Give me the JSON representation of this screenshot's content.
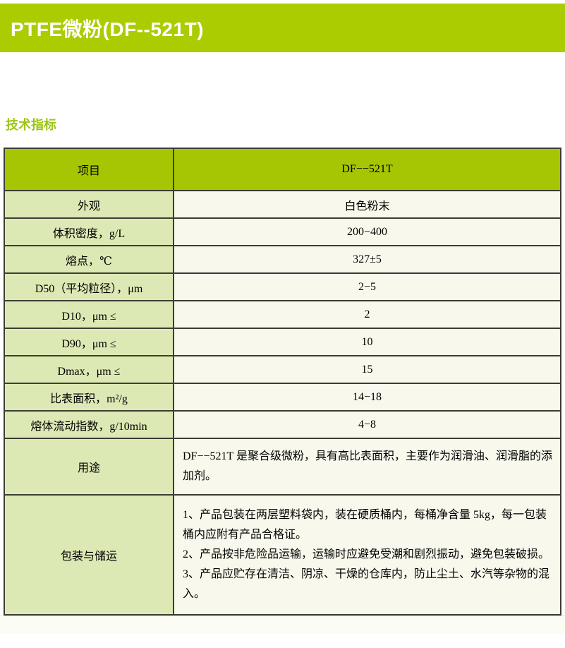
{
  "banner": {
    "title": "PTFE微粉(DF--521T)"
  },
  "section": {
    "heading": "技术指标"
  },
  "colors": {
    "banner_green": "#accc02",
    "header_green": "#a6c503",
    "label_green": "#dde9b4",
    "value_cream": "#f8f9ec",
    "heading_green": "#9cc515",
    "border_dark": "#3c3c33"
  },
  "table": {
    "header": {
      "col1": "项目",
      "col2": "DF−−521T"
    },
    "rows": [
      {
        "label": "外观",
        "value": "白色粉末"
      },
      {
        "label": "体积密度，g/L",
        "value": "200−400"
      },
      {
        "label": "熔点，℃",
        "value": "327±5"
      },
      {
        "label": "D50（平均粒径），μm",
        "value": "2−5"
      },
      {
        "label": "D10，μm ≤",
        "value": "2"
      },
      {
        "label": "D90，μm ≤",
        "value": "10"
      },
      {
        "label": "Dmax，μm ≤",
        "value": "15"
      },
      {
        "label": "比表面积，m²/g",
        "value": "14−18"
      },
      {
        "label": "熔体流动指数，g/10min",
        "value": "4−8"
      },
      {
        "label": "用途",
        "value": "DF−−521T 是聚合级微粉，具有高比表面积，主要作为润滑油、润滑脂的添加剂。"
      },
      {
        "label": "包装与储运",
        "lines": [
          "1、产品包装在两层塑料袋内，装在硬质桶内，每桶净含量 5kg，每一包装桶内应附有产品合格证。",
          "2、产品按非危险品运输，运输时应避免受潮和剧烈振动，避免包装破损。",
          "3、产品应贮存在清洁、阴凉、干燥的仓库内，防止尘土、水汽等杂物的混入。"
        ]
      }
    ]
  }
}
